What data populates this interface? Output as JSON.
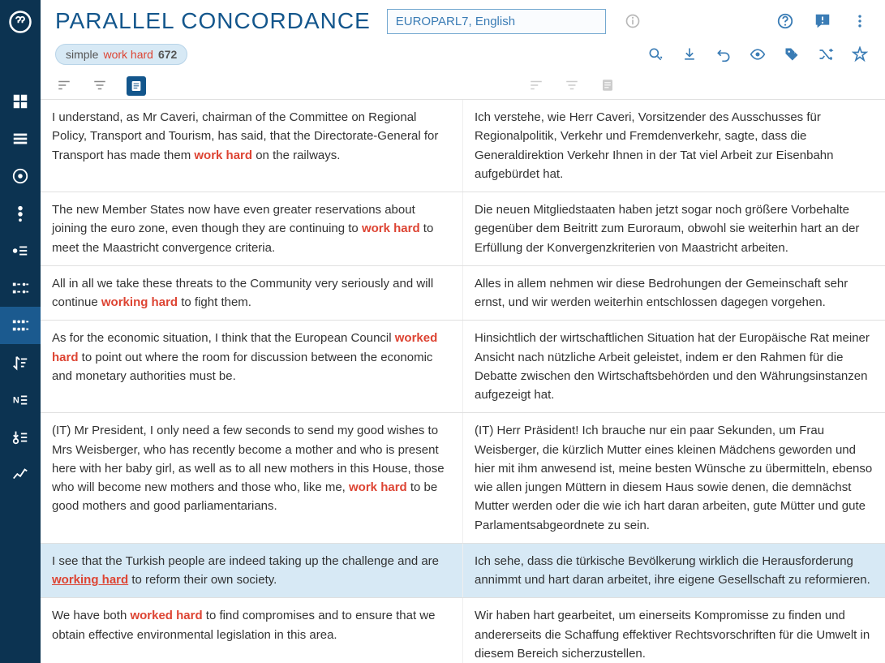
{
  "header": {
    "title": "PARALLEL CONCORDANCE",
    "corpus": "EUROPARL7, English"
  },
  "chip": {
    "mode": "simple",
    "term": "work hard",
    "count": "672"
  },
  "rows": [
    {
      "left_pre": "I understand, as Mr Caveri, chairman of the Committee on Regional Policy, Transport and Tourism, has said, that the Directorate-General for Transport has made them ",
      "kw": "work hard",
      "left_post": " on the railways.",
      "right": "Ich verstehe, wie Herr Caveri, Vorsitzender des Ausschusses für Regionalpolitik, Verkehr und Fremdenverkehr, sagte, dass die Generaldirektion Verkehr Ihnen in der Tat viel Arbeit zur Eisenbahn aufgebürdet hat.",
      "highlighted": false
    },
    {
      "left_pre": "The new Member States now have even greater reservations about joining the euro zone, even though they are continuing to ",
      "kw": "work hard",
      "left_post": " to meet the Maastricht convergence criteria.",
      "right": "Die neuen Mitgliedstaaten haben jetzt sogar noch größere Vorbehalte gegenüber dem Beitritt zum Euroraum, obwohl sie weiterhin hart an der Erfüllung der Konvergenzkriterien von Maastricht arbeiten.",
      "highlighted": false
    },
    {
      "left_pre": "All in all we take these threats to the Community very seriously and will continue ",
      "kw": "working hard",
      "left_post": " to fight them.",
      "right": "Alles in allem nehmen wir diese Bedrohungen der Gemeinschaft sehr ernst, und wir werden weiterhin entschlossen dagegen vorgehen.",
      "highlighted": false
    },
    {
      "left_pre": "As for the economic situation, I think that the European Council ",
      "kw": "worked hard",
      "left_post": " to point out where the room for discussion between the economic and monetary authorities must be.",
      "right": "Hinsichtlich der wirtschaftlichen Situation hat der Europäische Rat meiner Ansicht nach nützliche Arbeit geleistet, indem er den Rahmen für die Debatte zwischen den Wirtschaftsbehörden und den Währungsinstanzen aufgezeigt hat.",
      "highlighted": false
    },
    {
      "left_pre": "(IT) Mr President, I only need a few seconds to send my good wishes to Mrs Weisberger, who has recently become a mother and who is present here with her baby girl, as well as to all new mothers in this House, those who will become new mothers and those who, like me, ",
      "kw": "work hard",
      "left_post": " to be good mothers and good parliamentarians.",
      "right": "(IT) Herr Präsident! Ich brauche nur ein paar Sekunden, um Frau Weisberger, die kürzlich Mutter eines kleinen Mädchens geworden und hier mit ihm anwesend ist, meine besten Wünsche zu übermitteln, ebenso wie allen jungen Müttern in diesem Haus sowie denen, die demnächst Mutter werden oder die wie ich hart daran arbeiten, gute Mütter und gute Parlamentsabgeordnete zu sein.",
      "highlighted": false
    },
    {
      "left_pre": "I see that the Turkish people are indeed taking up the challenge and are ",
      "kw": "working hard",
      "left_post": " to reform their own society.",
      "right": "Ich sehe, dass die türkische Bevölkerung wirklich die Herausforderung annimmt und hart daran arbeitet, ihre eigene Gesellschaft zu reformieren.",
      "highlighted": true,
      "underline": true
    },
    {
      "left_pre": "We have both ",
      "kw": "worked hard",
      "left_post": " to find compromises and to ensure that we obtain effective environmental legislation in this area.",
      "right": "Wir haben hart gearbeitet, um einerseits Kompromisse zu finden und andererseits die Schaffung effektiver Rechtsvorschriften für die Umwelt in diesem Bereich sicherzustellen.",
      "highlighted": false
    }
  ]
}
